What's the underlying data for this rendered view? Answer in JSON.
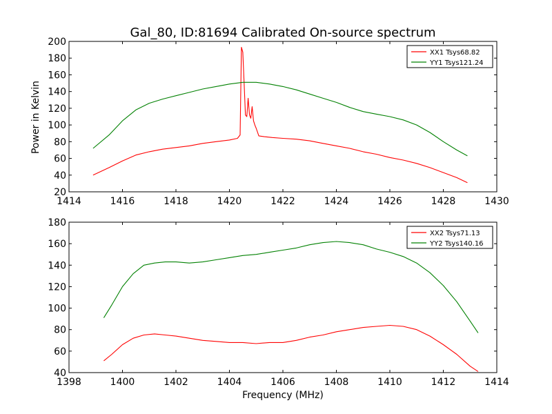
{
  "figure": {
    "title": "Gal_80, ID:81694 Calibrated On-source spectrum",
    "xlabel": "Frequency (MHz)",
    "ylabel": "Power in Kelvin"
  },
  "chart_data": [
    {
      "type": "line",
      "title": "Gal_80, ID:81694 Calibrated On-source spectrum",
      "xlabel": "",
      "ylabel": "Power in Kelvin",
      "xlim": [
        1414,
        1430
      ],
      "ylim": [
        20,
        200
      ],
      "xticks": [
        1414,
        1416,
        1418,
        1420,
        1422,
        1424,
        1426,
        1428,
        1430
      ],
      "yticks": [
        20,
        40,
        60,
        80,
        100,
        120,
        140,
        160,
        180,
        200
      ],
      "legend_position": "top-right",
      "series": [
        {
          "name": "XX1 Tsys68.82",
          "color": "#ff0000",
          "x": [
            1414.9,
            1415.5,
            1416.0,
            1416.5,
            1417.0,
            1417.5,
            1418.0,
            1418.5,
            1419.0,
            1419.5,
            1420.0,
            1420.3,
            1420.4,
            1420.45,
            1420.5,
            1420.55,
            1420.6,
            1420.65,
            1420.7,
            1420.75,
            1420.8,
            1420.85,
            1420.9,
            1420.95,
            1421.0,
            1421.1,
            1421.3,
            1421.6,
            1422.0,
            1422.5,
            1423.0,
            1423.5,
            1424.0,
            1424.5,
            1425.0,
            1425.5,
            1426.0,
            1426.5,
            1427.0,
            1427.5,
            1428.0,
            1428.5,
            1428.9
          ],
          "y": [
            40,
            49,
            57,
            64,
            68,
            71,
            73,
            75,
            78,
            80,
            82,
            84,
            88,
            193,
            187,
            150,
            112,
            110,
            132,
            112,
            108,
            122,
            105,
            100,
            96,
            87,
            86,
            85,
            84,
            83,
            81,
            78,
            75,
            72,
            68,
            65,
            61,
            58,
            54,
            49,
            43,
            37,
            31
          ]
        },
        {
          "name": "YY1 Tsys121.24",
          "color": "#008000",
          "x": [
            1414.9,
            1415.5,
            1416.0,
            1416.5,
            1417.0,
            1417.5,
            1418.0,
            1418.5,
            1419.0,
            1419.5,
            1420.0,
            1420.5,
            1421.0,
            1421.5,
            1422.0,
            1422.5,
            1423.0,
            1423.5,
            1424.0,
            1424.5,
            1425.0,
            1425.5,
            1426.0,
            1426.5,
            1427.0,
            1427.5,
            1428.0,
            1428.5,
            1428.9
          ],
          "y": [
            72,
            88,
            105,
            118,
            126,
            131,
            135,
            139,
            143,
            146,
            149,
            151,
            151,
            149,
            146,
            142,
            137,
            132,
            127,
            121,
            116,
            113,
            110,
            106,
            100,
            91,
            80,
            70,
            63
          ]
        }
      ]
    },
    {
      "type": "line",
      "title": "",
      "xlabel": "Frequency (MHz)",
      "ylabel": "",
      "xlim": [
        1398,
        1414
      ],
      "ylim": [
        40,
        180
      ],
      "xticks": [
        1398,
        1400,
        1402,
        1404,
        1406,
        1408,
        1410,
        1412,
        1414
      ],
      "yticks": [
        40,
        60,
        80,
        100,
        120,
        140,
        160,
        180
      ],
      "legend_position": "top-right",
      "series": [
        {
          "name": "XX2 Tsys71.13",
          "color": "#ff0000",
          "x": [
            1399.3,
            1399.6,
            1400.0,
            1400.4,
            1400.8,
            1401.2,
            1401.6,
            1402.0,
            1402.5,
            1403.0,
            1403.5,
            1404.0,
            1404.5,
            1405.0,
            1405.5,
            1406.0,
            1406.5,
            1407.0,
            1407.5,
            1408.0,
            1408.5,
            1409.0,
            1409.5,
            1410.0,
            1410.5,
            1411.0,
            1411.5,
            1412.0,
            1412.5,
            1413.0,
            1413.3
          ],
          "y": [
            51,
            57,
            66,
            72,
            75,
            76,
            75,
            74,
            72,
            70,
            69,
            68,
            68,
            67,
            68,
            68,
            70,
            73,
            75,
            78,
            80,
            82,
            83,
            84,
            83,
            80,
            74,
            66,
            57,
            46,
            41
          ]
        },
        {
          "name": "YY2 Tsys140.16",
          "color": "#008000",
          "x": [
            1399.3,
            1399.6,
            1400.0,
            1400.4,
            1400.8,
            1401.2,
            1401.6,
            1402.0,
            1402.5,
            1403.0,
            1403.5,
            1404.0,
            1404.5,
            1405.0,
            1405.5,
            1406.0,
            1406.5,
            1407.0,
            1407.5,
            1408.0,
            1408.5,
            1409.0,
            1409.5,
            1410.0,
            1410.5,
            1411.0,
            1411.5,
            1412.0,
            1412.5,
            1413.0,
            1413.3
          ],
          "y": [
            91,
            103,
            120,
            132,
            140,
            142,
            143,
            143,
            142,
            143,
            145,
            147,
            149,
            150,
            152,
            154,
            156,
            159,
            161,
            162,
            161,
            159,
            155,
            152,
            148,
            142,
            133,
            121,
            106,
            88,
            77
          ]
        }
      ]
    }
  ]
}
